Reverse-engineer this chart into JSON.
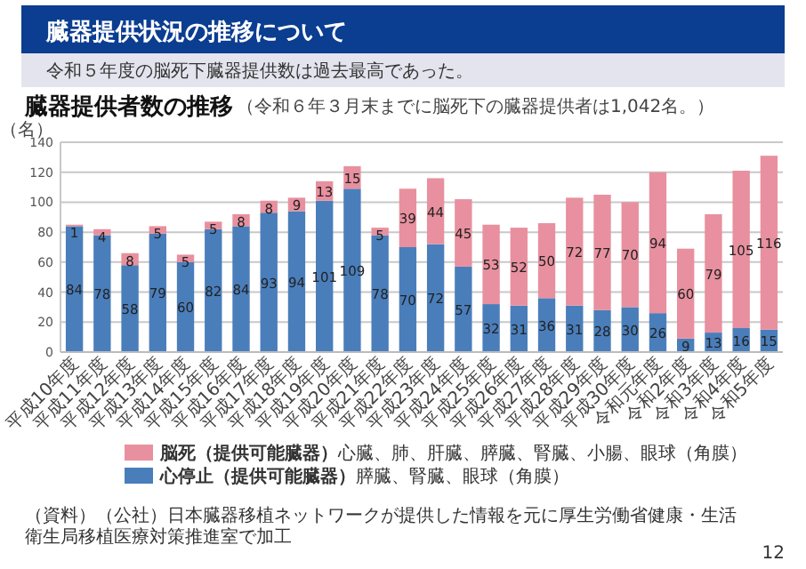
{
  "chart_data": {
    "type": "bar",
    "stacked": true,
    "title": "臓器提供状況の推移について",
    "subtitle": "令和５年度の脳死下臓器提供数は過去最高であった。",
    "annotations": [
      "臓器提供者数の推移",
      "（令和６年３月末までに脳死下の臓器提供者は1,042名。）",
      "（資料）（公社）日本臓器移植ネットワークが提供した情報を元に厚生労働省健康・生活衛生局移植医療対策推進室で加工",
      "12"
    ],
    "ylabel": "（名）",
    "categories": [
      "平成10年度",
      "平成11年度",
      "平成12年度",
      "平成13年度",
      "平成14年度",
      "平成15年度",
      "平成16年度",
      "平成17年度",
      "平成18年度",
      "平成19年度",
      "平成20年度",
      "平成21年度",
      "平成22年度",
      "平成23年度",
      "平成24年度",
      "平成25年度",
      "平成26年度",
      "平成27年度",
      "平成28年度",
      "平成29年度",
      "平成30年度",
      "令和元年度",
      "令和2年度",
      "令和3年度",
      "令和4年度",
      "令和5年度"
    ],
    "series": [
      {
        "name": "**心停止（提供可能臓器）**膵臓、腎臓、眼球（角膜）",
        "color": "#4a7ebb",
        "values": [
          84,
          78,
          58,
          79,
          60,
          82,
          84,
          93,
          94,
          101,
          109,
          78,
          70,
          72,
          57,
          32,
          31,
          36,
          31,
          28,
          30,
          26,
          9,
          13,
          16,
          15
        ]
      },
      {
        "name": "**脳死（提供可能臓器）**心臓、肺、肝臓、膵臓、腎臓、小腸、眼球（角膜）",
        "color": "#e8909f",
        "values": [
          1,
          4,
          8,
          5,
          5,
          5,
          8,
          8,
          9,
          13,
          15,
          5,
          39,
          44,
          45,
          53,
          52,
          50,
          72,
          77,
          70,
          94,
          60,
          79,
          105,
          116
        ]
      }
    ],
    "data_labels": true,
    "ylim": [
      0,
      140
    ],
    "yticks": [
      0,
      20,
      40,
      60,
      80,
      100,
      120,
      140
    ],
    "grid": "y",
    "legend": "bottom"
  }
}
